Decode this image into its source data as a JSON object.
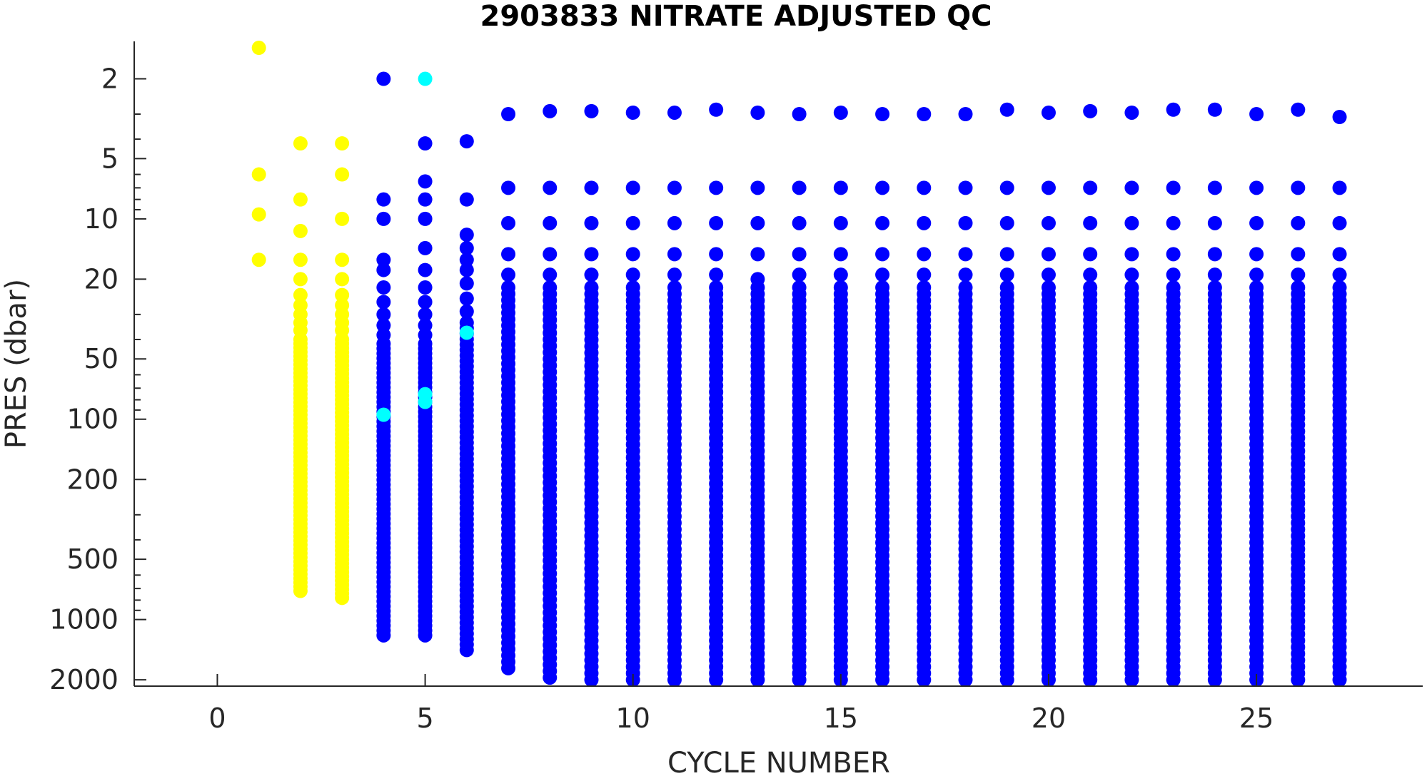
{
  "chart_data": {
    "type": "scatter",
    "title": "2903833  NITRATE ADJUSTED QC",
    "xlabel": "CYCLE NUMBER",
    "ylabel": "PRES (dbar)",
    "x_scale": "linear",
    "y_scale": "log",
    "y_reversed": true,
    "xlim": [
      -2,
      29
    ],
    "ylim": [
      1.3,
      2150
    ],
    "x_ticks": [
      0,
      5,
      10,
      15,
      20,
      25
    ],
    "x_tick_labels": [
      "0",
      "5",
      "10",
      "15",
      "20",
      "25"
    ],
    "y_ticks": [
      2,
      5,
      10,
      20,
      50,
      100,
      200,
      500,
      1000,
      2000
    ],
    "y_tick_labels": [
      "2",
      "5",
      "10",
      "20",
      "50",
      "100",
      "200",
      "500",
      "1000",
      "2000"
    ],
    "grid": false,
    "legend": "none",
    "colors": {
      "good": "#0000ff",
      "probably_good": "#00ffff",
      "probably_bad": "#ffff00",
      "axis": "#262626"
    },
    "series": [
      {
        "color": "#ffff00",
        "points": [
          [
            1,
            1.4
          ],
          [
            1,
            6
          ],
          [
            1,
            9.5
          ],
          [
            1,
            16
          ],
          [
            2,
            4.2
          ],
          [
            2,
            8
          ],
          [
            2,
            11.5
          ],
          [
            2,
            16
          ],
          [
            2,
            20
          ],
          [
            2,
            24
          ],
          [
            2,
            27
          ],
          [
            2,
            30
          ],
          [
            2,
            33
          ],
          [
            2,
            36
          ],
          [
            3,
            4.2
          ],
          [
            3,
            6
          ],
          [
            3,
            10
          ],
          [
            3,
            16
          ],
          [
            3,
            20
          ],
          [
            3,
            24
          ],
          [
            3,
            27
          ],
          [
            3,
            30
          ],
          [
            3,
            33
          ],
          [
            3,
            36
          ]
        ],
        "ranges": [
          {
            "x": 2,
            "from": 40,
            "to": 720
          },
          {
            "x": 3,
            "from": 40,
            "to": 780
          }
        ]
      },
      {
        "color": "#0000ff",
        "points": [
          [
            4,
            2.0
          ],
          [
            4,
            8
          ],
          [
            4,
            10
          ],
          [
            4,
            16
          ],
          [
            4,
            18
          ],
          [
            4,
            22
          ],
          [
            4,
            26
          ],
          [
            4,
            30
          ],
          [
            4,
            34
          ],
          [
            4,
            38
          ],
          [
            5,
            4.2
          ],
          [
            5,
            6.5
          ],
          [
            5,
            8
          ],
          [
            5,
            10
          ],
          [
            5,
            14
          ],
          [
            5,
            18
          ],
          [
            5,
            22
          ],
          [
            5,
            26
          ],
          [
            5,
            30
          ],
          [
            5,
            34
          ],
          [
            5,
            38
          ],
          [
            6,
            4.1
          ],
          [
            6,
            8
          ],
          [
            6,
            12
          ],
          [
            6,
            14
          ],
          [
            6,
            16
          ],
          [
            6,
            18
          ],
          [
            6,
            21
          ],
          [
            6,
            25
          ],
          [
            6,
            29
          ],
          [
            7,
            3.0
          ],
          [
            7,
            7
          ],
          [
            7,
            10.5
          ],
          [
            7,
            15
          ],
          [
            7,
            19
          ],
          [
            8,
            2.9
          ],
          [
            8,
            7
          ],
          [
            8,
            10.5
          ],
          [
            8,
            15
          ],
          [
            8,
            19
          ],
          [
            9,
            2.9
          ],
          [
            9,
            7
          ],
          [
            9,
            10.5
          ],
          [
            9,
            15
          ],
          [
            9,
            19
          ],
          [
            10,
            2.95
          ],
          [
            10,
            7
          ],
          [
            10,
            10.5
          ],
          [
            10,
            15
          ],
          [
            10,
            19
          ],
          [
            11,
            2.95
          ],
          [
            11,
            7
          ],
          [
            11,
            10.5
          ],
          [
            11,
            15
          ],
          [
            11,
            19
          ],
          [
            12,
            2.85
          ],
          [
            12,
            7
          ],
          [
            12,
            10.5
          ],
          [
            12,
            15
          ],
          [
            12,
            19
          ],
          [
            13,
            2.95
          ],
          [
            13,
            7
          ],
          [
            13,
            10.5
          ],
          [
            13,
            15
          ],
          [
            13,
            20
          ],
          [
            14,
            3.0
          ],
          [
            14,
            7
          ],
          [
            14,
            10.5
          ],
          [
            14,
            15
          ],
          [
            14,
            19
          ],
          [
            15,
            2.95
          ],
          [
            15,
            7
          ],
          [
            15,
            10.5
          ],
          [
            15,
            15
          ],
          [
            15,
            19
          ],
          [
            16,
            3.0
          ],
          [
            16,
            7
          ],
          [
            16,
            10.5
          ],
          [
            16,
            15
          ],
          [
            16,
            19
          ],
          [
            17,
            3.0
          ],
          [
            17,
            7
          ],
          [
            17,
            10.5
          ],
          [
            17,
            15
          ],
          [
            17,
            19
          ],
          [
            18,
            3.0
          ],
          [
            18,
            7
          ],
          [
            18,
            10.5
          ],
          [
            18,
            15
          ],
          [
            18,
            19
          ],
          [
            19,
            2.85
          ],
          [
            19,
            7
          ],
          [
            19,
            10.5
          ],
          [
            19,
            15
          ],
          [
            19,
            19
          ],
          [
            20,
            2.95
          ],
          [
            20,
            7
          ],
          [
            20,
            10.5
          ],
          [
            20,
            15
          ],
          [
            20,
            19
          ],
          [
            21,
            2.9
          ],
          [
            21,
            7
          ],
          [
            21,
            10.5
          ],
          [
            21,
            15
          ],
          [
            21,
            19
          ],
          [
            22,
            2.95
          ],
          [
            22,
            7
          ],
          [
            22,
            10.5
          ],
          [
            22,
            15
          ],
          [
            22,
            19
          ],
          [
            23,
            2.85
          ],
          [
            23,
            7
          ],
          [
            23,
            10.5
          ],
          [
            23,
            15
          ],
          [
            23,
            19
          ],
          [
            24,
            2.85
          ],
          [
            24,
            7
          ],
          [
            24,
            10.5
          ],
          [
            24,
            15
          ],
          [
            24,
            19
          ],
          [
            25,
            3.0
          ],
          [
            25,
            7
          ],
          [
            25,
            10.5
          ],
          [
            25,
            15
          ],
          [
            25,
            19
          ],
          [
            26,
            2.85
          ],
          [
            26,
            7
          ],
          [
            26,
            10.5
          ],
          [
            26,
            15
          ],
          [
            26,
            19
          ],
          [
            27,
            3.1
          ],
          [
            27,
            7
          ],
          [
            27,
            10.5
          ],
          [
            27,
            15
          ],
          [
            27,
            19
          ]
        ],
        "ranges": [
          {
            "x": 4,
            "from": 42,
            "to": 1200
          },
          {
            "x": 5,
            "from": 42,
            "to": 1200
          },
          {
            "x": 6,
            "from": 33,
            "to": 1420
          },
          {
            "x": 7,
            "from": 22,
            "to": 1750
          },
          {
            "x": 8,
            "from": 22,
            "to": 1950
          },
          {
            "x": 9,
            "from": 22,
            "to": 2000
          },
          {
            "x": 10,
            "from": 22,
            "to": 2000
          },
          {
            "x": 11,
            "from": 22,
            "to": 2000
          },
          {
            "x": 12,
            "from": 22,
            "to": 2000
          },
          {
            "x": 13,
            "from": 22,
            "to": 2000
          },
          {
            "x": 14,
            "from": 22,
            "to": 2000
          },
          {
            "x": 15,
            "from": 22,
            "to": 2000
          },
          {
            "x": 16,
            "from": 22,
            "to": 2000
          },
          {
            "x": 17,
            "from": 22,
            "to": 2000
          },
          {
            "x": 18,
            "from": 22,
            "to": 2000
          },
          {
            "x": 19,
            "from": 22,
            "to": 2000
          },
          {
            "x": 20,
            "from": 22,
            "to": 2000
          },
          {
            "x": 21,
            "from": 22,
            "to": 2000
          },
          {
            "x": 22,
            "from": 22,
            "to": 2000
          },
          {
            "x": 23,
            "from": 22,
            "to": 2000
          },
          {
            "x": 24,
            "from": 22,
            "to": 2000
          },
          {
            "x": 25,
            "from": 22,
            "to": 2000
          },
          {
            "x": 26,
            "from": 22,
            "to": 2000
          },
          {
            "x": 27,
            "from": 22,
            "to": 2000
          }
        ]
      },
      {
        "color": "#00ffff",
        "points": [
          [
            4,
            95
          ],
          [
            5,
            2.0
          ],
          [
            5,
            75
          ],
          [
            5,
            82
          ],
          [
            6,
            37
          ]
        ],
        "ranges": []
      }
    ]
  }
}
